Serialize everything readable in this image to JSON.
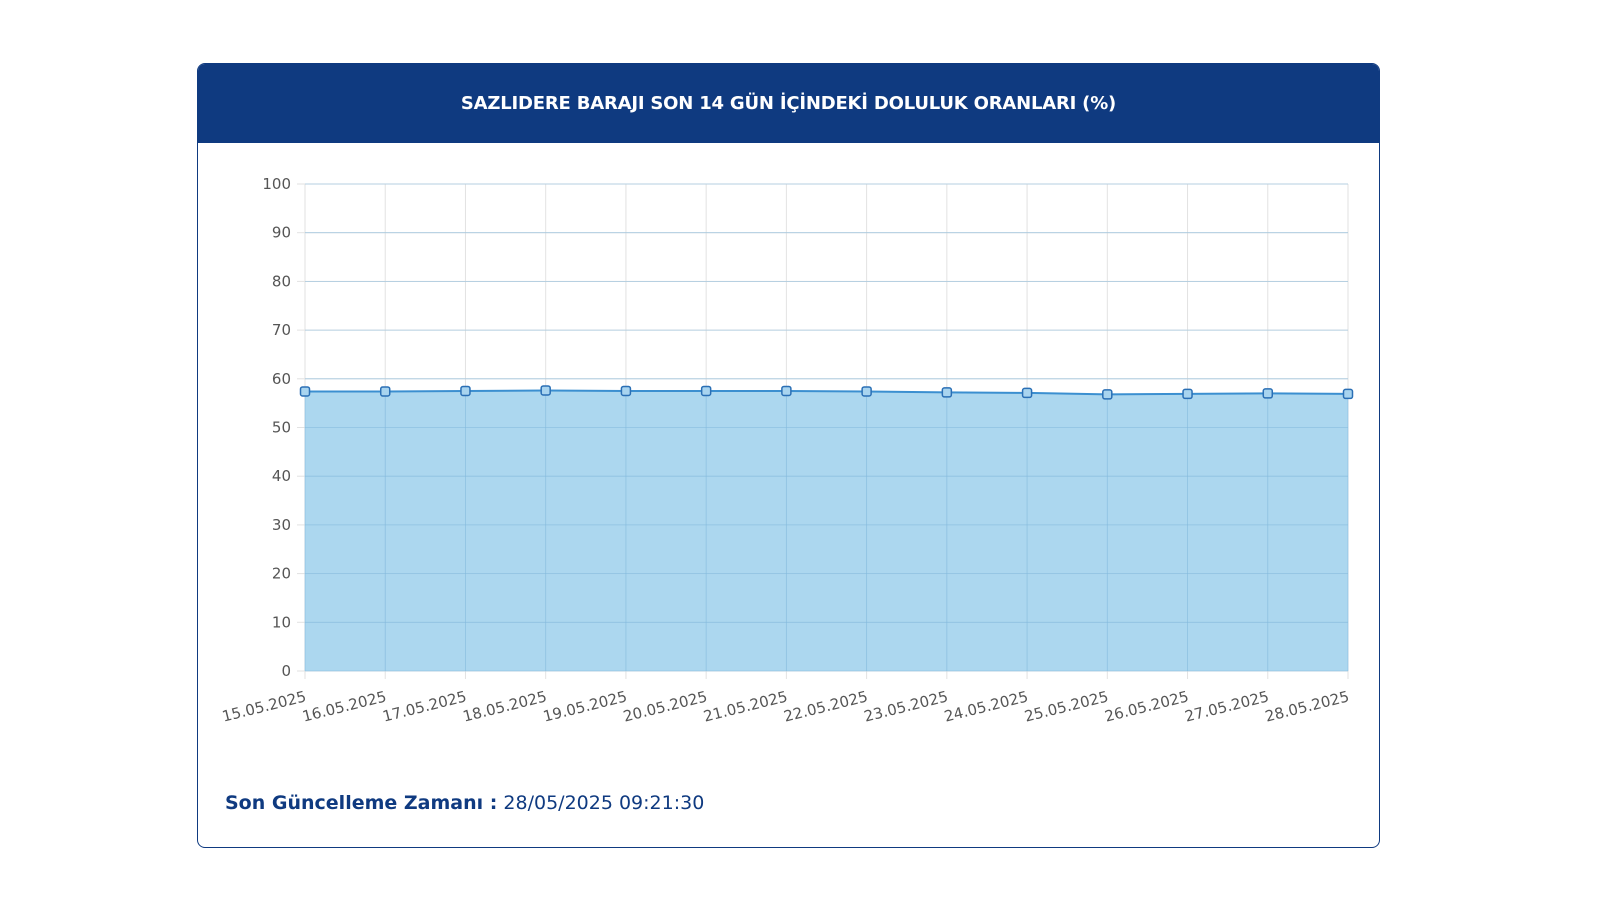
{
  "header": {
    "title": "SAZLIDERE BARAJI SON 14 GÜN İÇİNDEKİ DOLULUK ORANLARI (%)"
  },
  "footer": {
    "label": "Son Güncelleme Zamanı :",
    "value": "28/05/2025 09:21:30"
  },
  "colors": {
    "header_bg": "#0f3a80",
    "area_fill": "#9dd0ec",
    "line": "#3b8fd0",
    "point": "#2a6fb5",
    "grid": "#e2e2e2"
  },
  "chart_data": {
    "type": "area",
    "title": "SAZLIDERE BARAJI SON 14 GÜN İÇİNDEKİ DOLULUK ORANLARI (%)",
    "xlabel": "",
    "ylabel": "",
    "ylim": [
      0,
      100
    ],
    "yticks": [
      "0",
      "10",
      "20",
      "30",
      "40",
      "50",
      "60",
      "70",
      "80",
      "90",
      "100"
    ],
    "grid": true,
    "categories": [
      "15.05.2025",
      "16.05.2025",
      "17.05.2025",
      "18.05.2025",
      "19.05.2025",
      "20.05.2025",
      "21.05.2025",
      "22.05.2025",
      "23.05.2025",
      "24.05.2025",
      "25.05.2025",
      "26.05.2025",
      "27.05.2025",
      "28.05.2025"
    ],
    "series": [
      {
        "values": [
          57.4,
          57.4,
          57.5,
          57.6,
          57.5,
          57.5,
          57.5,
          57.4,
          57.2,
          57.1,
          56.8,
          56.9,
          57.0,
          56.9
        ]
      }
    ]
  }
}
